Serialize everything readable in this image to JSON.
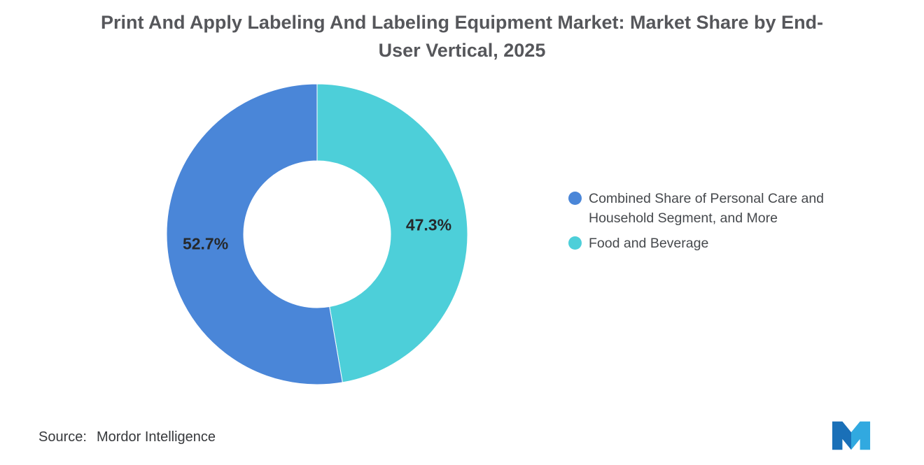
{
  "title": "Print And Apply Labeling And Labeling Equipment Market: Market Share by End-User Vertical, 2025",
  "chart_data": {
    "type": "pie",
    "subtype": "donut",
    "title": "Print And Apply Labeling And Labeling Equipment Market: Market Share by End-User Vertical, 2025",
    "start_angle_deg": -90,
    "direction": "clockwise",
    "inner_radius_ratio": 0.49,
    "data_labels_shown": true,
    "data_label_suffix": "%",
    "legend_position": "right",
    "slices": [
      {
        "label": "Food and Beverage",
        "value": 47.3,
        "color": "#4DCFD9"
      },
      {
        "label": "Combined Share of Personal Care and Household Segment, and More",
        "value": 52.7,
        "color": "#4A86D8"
      }
    ],
    "legend": [
      {
        "label": "Combined Share of Personal Care and Household Segment, and More",
        "color": "#4A86D8"
      },
      {
        "label": "Food and Beverage",
        "color": "#4DCFD9"
      }
    ]
  },
  "source": {
    "prefix": "Source:",
    "text": "Mordor Intelligence"
  },
  "logo": {
    "name": "mordor-intelligence-logo",
    "color_left": "#1A70B8",
    "color_right": "#31A9E0"
  }
}
